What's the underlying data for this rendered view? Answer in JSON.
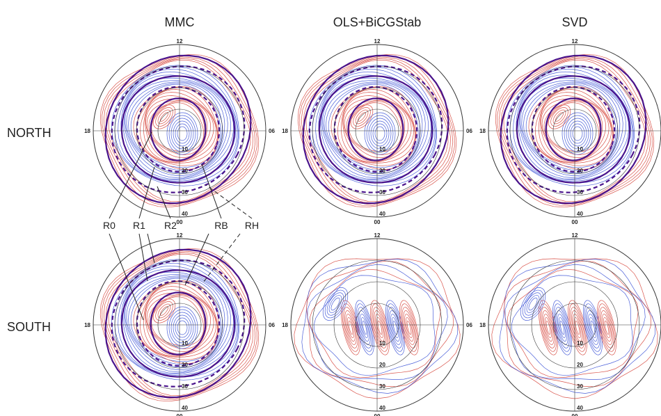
{
  "columns": [
    "MMC",
    "OLS+BiCGStab",
    "SVD"
  ],
  "rows": [
    "NORTH",
    "SOUTH"
  ],
  "mlt_ticks": {
    "top": "12",
    "left": "18",
    "right": "06",
    "bottom": "00"
  },
  "colat_ticks": [
    "10",
    "20",
    "30",
    "40"
  ],
  "boundary_labels": [
    "R0",
    "R1",
    "R2",
    "RB",
    "RH"
  ],
  "colors": {
    "positive": "#d9534a",
    "negative": "#4a5fd9",
    "boundary": "#4a148c",
    "frame": "#333333"
  },
  "icons": {
    "boundary_solid": "solid-purple-line",
    "boundary_dashed": "dashed-purple-line"
  }
}
